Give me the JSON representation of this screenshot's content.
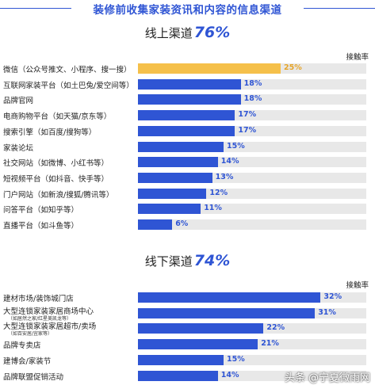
{
  "page_title": "装修前收集家装资讯和内容的信息渠道",
  "colors": {
    "accent": "#2f55d4",
    "highlight": "#f5c04a",
    "track": "#e8e8e8"
  },
  "watermark": "头条 @宁夏微雨网",
  "chart_data": [
    {
      "type": "bar",
      "title": "线上渠道",
      "title_value": "76%",
      "axis_label": "接触率",
      "categories": [
        "微信（公众号推文、小程序、搜一搜）",
        "互联网家装平台（如土巴兔/爱空间等）",
        "品牌官网",
        "电商购物平台（如天猫/京东等）",
        "搜索引擎（如百度/搜狗等）",
        "家装论坛",
        "社交网站（如微博、小红书等）",
        "短视频平台（如抖音、快手等）",
        "门户网站（如新浪/搜狐/腾讯等）",
        "问答平台（如知乎等）",
        "直播平台（如斗鱼等）"
      ],
      "values": [
        25,
        18,
        18,
        17,
        17,
        15,
        14,
        13,
        12,
        11,
        6
      ],
      "value_labels": [
        "25%",
        "18%",
        "18%",
        "17%",
        "17%",
        "15%",
        "14%",
        "13%",
        "12%",
        "11%",
        "6%"
      ],
      "highlight_index": 0,
      "xlim": [
        0,
        40
      ]
    },
    {
      "type": "bar",
      "title": "线下渠道",
      "title_value": "74%",
      "axis_label": "接触率",
      "categories": [
        "建材市场/装饰城门店",
        "大型连锁家装家居商场中心",
        "大型连锁家装家居超市/卖场",
        "品牌专卖店",
        "建博会/家装节",
        "品牌联盟促销活动"
      ],
      "subtitles": [
        "",
        "（如居然之家/红星美凯龙等）",
        "（如百安居/宜家等）",
        "",
        "",
        ""
      ],
      "values": [
        32,
        31,
        22,
        21,
        15,
        14
      ],
      "value_labels": [
        "32%",
        "31%",
        "22%",
        "21%",
        "15%",
        "14%"
      ],
      "xlim": [
        0,
        40
      ]
    }
  ]
}
